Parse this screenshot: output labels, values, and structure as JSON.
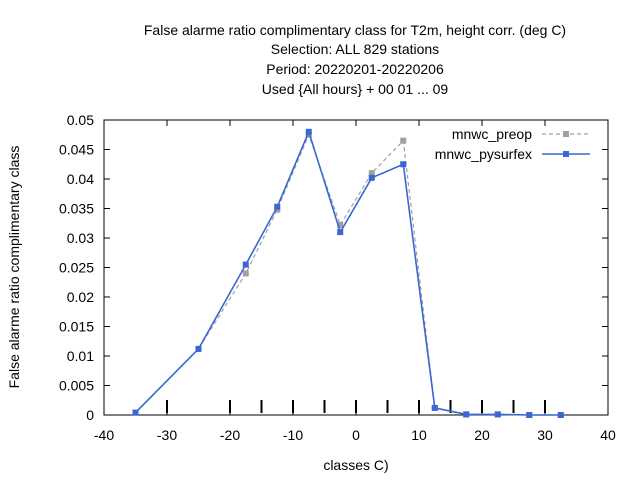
{
  "chart_data": {
    "type": "line",
    "title_lines": [
      "False alarme ratio complimentary class  for T2m, height corr. (deg C)",
      "Selection: ALL    829 stations",
      "Period: 20220201-20220206",
      "Used {All hours} + 00 01 ... 09"
    ],
    "xlabel": "classes C)",
    "ylabel": "False alarme ratio complimentary class",
    "xlim": [
      -40,
      40
    ],
    "ylim": [
      0,
      0.05
    ],
    "xticks": [
      -40,
      -30,
      -20,
      -10,
      0,
      10,
      20,
      30,
      40
    ],
    "yticks": [
      0,
      0.005,
      0.01,
      0.015,
      0.02,
      0.025,
      0.03,
      0.035,
      0.04,
      0.045,
      0.05
    ],
    "xtick_labels": [
      "-40",
      "-30",
      "-20",
      "-10",
      "0",
      "10",
      "20",
      "30",
      "40"
    ],
    "ytick_labels": [
      "0",
      "0.005",
      "0.01",
      "0.015",
      "0.02",
      "0.025",
      "0.03",
      "0.035",
      "0.04",
      "0.045",
      "0.05"
    ],
    "class_markers": [
      -30,
      -20,
      -15,
      -10,
      -5,
      0,
      5,
      10,
      15,
      20,
      25,
      30
    ],
    "legend_position": "top-right",
    "grid": false,
    "series": [
      {
        "name": "mnwc_preop",
        "color": "#a0a0a0",
        "dashed": true,
        "x": [
          -35,
          -25,
          -17.5,
          -12.5,
          -7.5,
          -2.5,
          2.5,
          7.5,
          12.5,
          17.5,
          22.5,
          27.5,
          32.5
        ],
        "y": [
          0.0004,
          0.0112,
          0.024,
          0.0348,
          0.0475,
          0.0322,
          0.041,
          0.0465,
          0.0012,
          0.0001,
          0.0001,
          0.0,
          0.0
        ]
      },
      {
        "name": "mnwc_pysurfex",
        "color": "#3a67d4",
        "dashed": false,
        "x": [
          -35,
          -25,
          -17.5,
          -12.5,
          -7.5,
          -2.5,
          2.5,
          7.5,
          12.5,
          17.5,
          22.5,
          27.5,
          32.5
        ],
        "y": [
          0.0004,
          0.0112,
          0.0255,
          0.0353,
          0.048,
          0.031,
          0.0402,
          0.0425,
          0.0012,
          0.0001,
          0.0001,
          0.0,
          0.0
        ]
      }
    ]
  }
}
